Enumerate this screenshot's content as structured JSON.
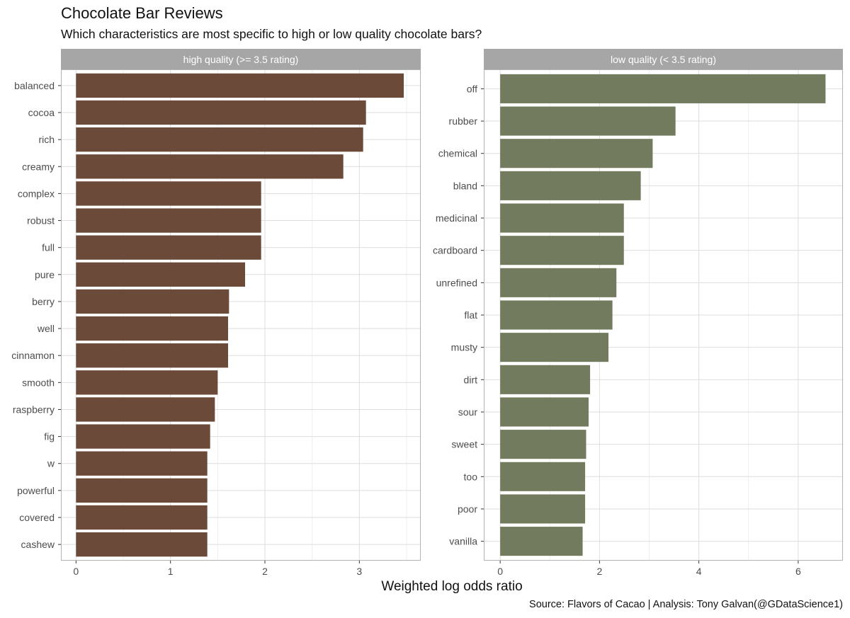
{
  "title": "Chocolate Bar Reviews",
  "subtitle": "Which characteristics are most specific to high or low quality chocolate bars?",
  "caption": "Source: Flavors of Cacao  |  Analysis: Tony Galvan(@GDataScience1)",
  "colors": {
    "high_bar": "#6b4a39",
    "low_bar": "#737b5e",
    "strip": "#a6a6a6",
    "grid_major": "#dedede",
    "grid_minor": "#efefef",
    "panel_border": "#b3b3b3"
  },
  "chart_data": [
    {
      "type": "bar",
      "orientation": "horizontal",
      "title": "high quality (>= 3.5 rating)",
      "xlabel": "Weighted log odds ratio",
      "xlim": [
        -0.16,
        3.65
      ],
      "xticks": [
        0,
        1,
        2,
        3
      ],
      "grid": true,
      "categories": [
        "balanced",
        "cocoa",
        "rich",
        "creamy",
        "complex",
        "robust",
        "full",
        "pure",
        "berry",
        "well",
        "cinnamon",
        "smooth",
        "raspberry",
        "fig",
        "w",
        "powerful",
        "covered",
        "cashew"
      ],
      "values": [
        3.47,
        3.07,
        3.04,
        2.83,
        1.96,
        1.96,
        1.96,
        1.79,
        1.62,
        1.61,
        1.61,
        1.5,
        1.47,
        1.42,
        1.39,
        1.39,
        1.39,
        1.39
      ]
    },
    {
      "type": "bar",
      "orientation": "horizontal",
      "title": "low quality (< 3.5 rating)",
      "xlabel": "Weighted log odds ratio",
      "xlim": [
        -0.33,
        6.9
      ],
      "xticks": [
        0,
        2,
        4,
        6
      ],
      "grid": true,
      "categories": [
        "off",
        "rubber",
        "chemical",
        "bland",
        "medicinal",
        "cardboard",
        "unrefined",
        "flat",
        "musty",
        "dirt",
        "sour",
        "sweet",
        "too",
        "poor",
        "vanilla"
      ],
      "values": [
        6.55,
        3.53,
        3.07,
        2.83,
        2.49,
        2.49,
        2.34,
        2.26,
        2.18,
        1.81,
        1.78,
        1.73,
        1.71,
        1.71,
        1.66
      ]
    }
  ]
}
